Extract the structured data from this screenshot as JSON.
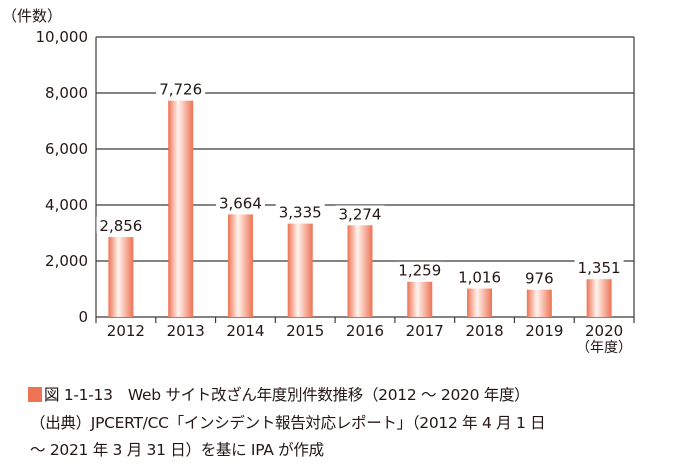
{
  "chart_data": {
    "type": "bar",
    "ylabel": "（件数）",
    "xlabel": "（年度）",
    "categories": [
      "2012",
      "2013",
      "2014",
      "2015",
      "2016",
      "2017",
      "2018",
      "2019",
      "2020"
    ],
    "values": [
      2856,
      7726,
      3664,
      3335,
      3274,
      1259,
      1016,
      976,
      1351
    ],
    "data_labels": [
      "2,856",
      "7,726",
      "3,664",
      "3,335",
      "3,274",
      "1,259",
      "1,016",
      "976",
      "1,351"
    ],
    "ylim": [
      0,
      10000
    ],
    "yticks": [
      0,
      2000,
      4000,
      6000,
      8000,
      10000
    ],
    "ytick_labels": [
      "0",
      "2,000",
      "4,000",
      "6,000",
      "8,000",
      "10,000"
    ],
    "grid": true,
    "bar_color": "#ee7354"
  },
  "caption": {
    "figure_title": "図 1-1-13　Web サイト改ざん年度別件数推移（2012 ～ 2020 年度）",
    "source_line1": "（出典）JPCERT/CC「インシデント報告対応レポート」（2012 年 4 月 1 日",
    "source_line2": "～ 2021 年 3 月 31 日）を基に IPA が作成"
  }
}
